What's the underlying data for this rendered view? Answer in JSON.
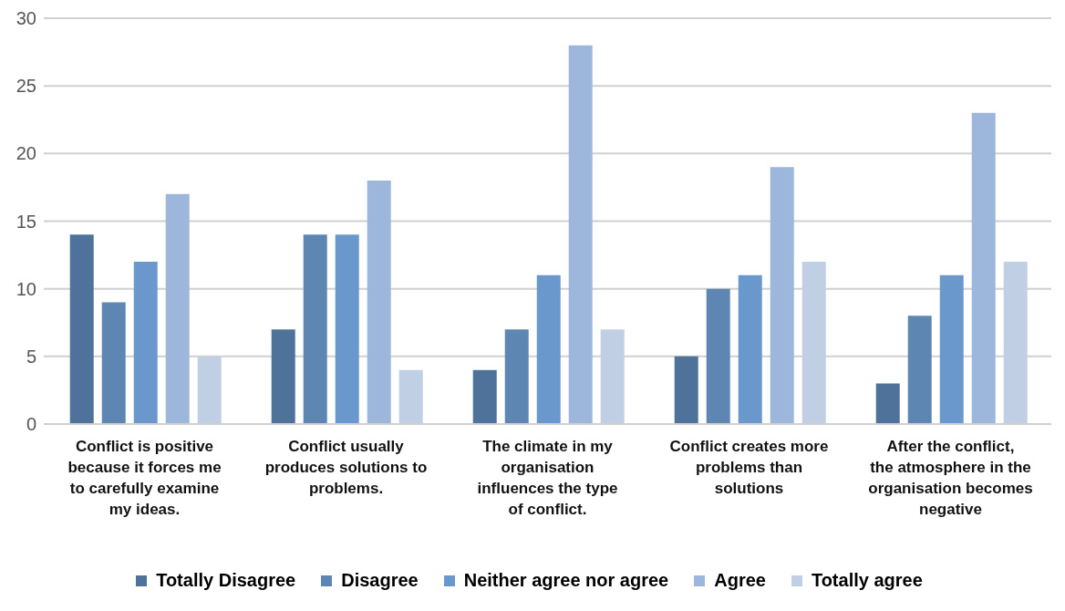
{
  "chart_data": {
    "type": "bar",
    "categories": [
      "Conflict is positive because it forces me to carefully examine my ideas.",
      "Conflict usually produces solutions to problems.",
      "The climate in my organisation influences the type of conflict.",
      "Conflict creates more problems than solutions",
      "After the conflict, the atmosphere in the organisation becomes negative"
    ],
    "series": [
      {
        "name": "Totally Disagree",
        "color": "#4e7299",
        "values": [
          14,
          7,
          4,
          5,
          3
        ]
      },
      {
        "name": "Disagree",
        "color": "#5e86b3",
        "values": [
          9,
          14,
          7,
          10,
          8
        ]
      },
      {
        "name": "Neither agree nor agree",
        "color": "#6a98cc",
        "values": [
          12,
          14,
          11,
          11,
          11
        ]
      },
      {
        "name": "Agree",
        "color": "#9db6dc",
        "values": [
          17,
          18,
          28,
          19,
          23
        ]
      },
      {
        "name": "Totally agree",
        "color": "#c1cfe5",
        "values": [
          5,
          4,
          7,
          12,
          12
        ]
      }
    ],
    "ylim": [
      0,
      30
    ],
    "yticks": [
      0,
      5,
      10,
      15,
      20,
      25,
      30
    ],
    "grid": "y",
    "legend": "bottom"
  }
}
